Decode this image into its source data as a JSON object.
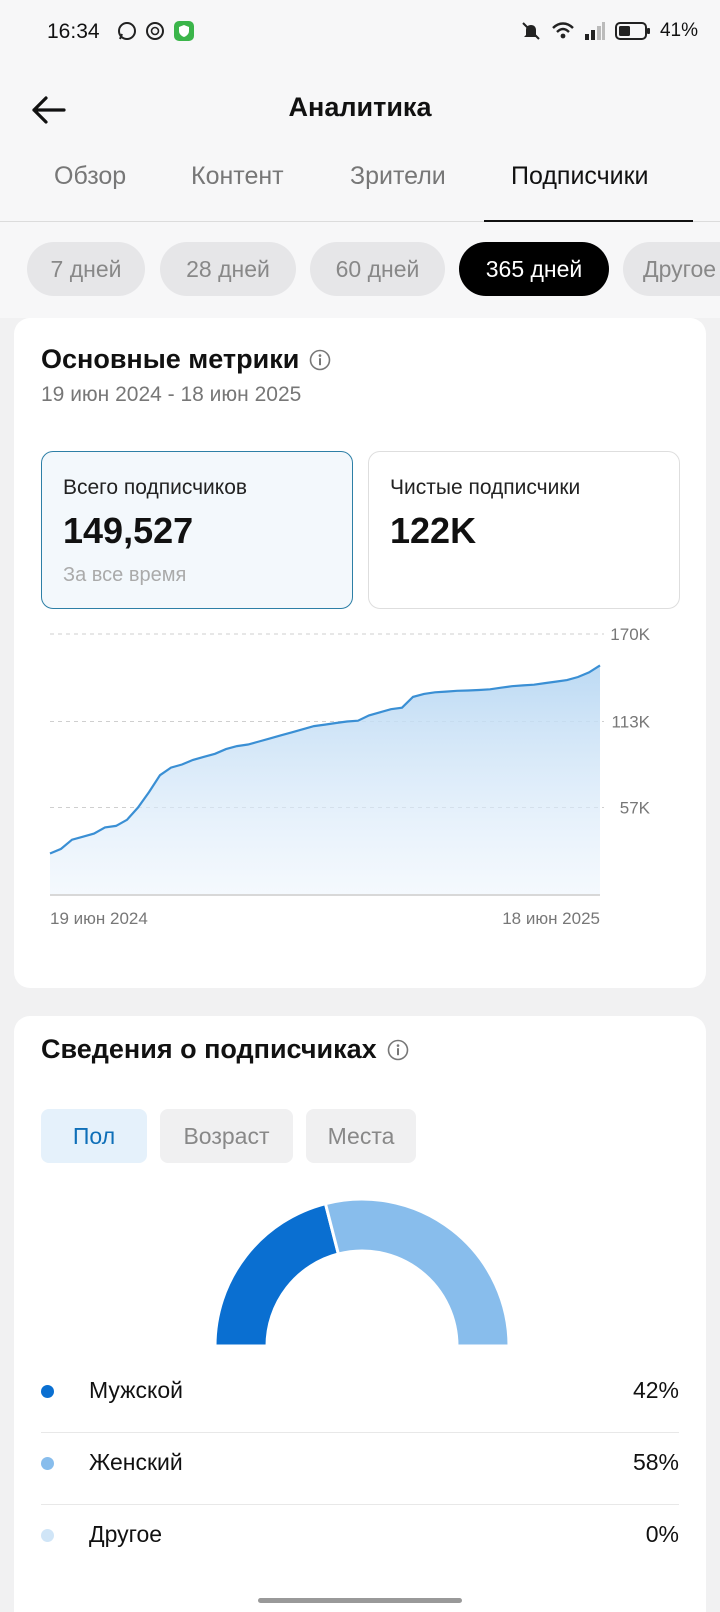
{
  "statusbar": {
    "time": "16:34",
    "battery": "41%",
    "icons_left": [
      "whatsapp-icon",
      "chatgpt-icon",
      "shield-app-icon"
    ],
    "icons_right": [
      "mute-icon",
      "wifi-icon",
      "signal-icon",
      "battery-icon"
    ]
  },
  "header": {
    "title": "Аналитика"
  },
  "tabs": [
    {
      "label": "Обзор"
    },
    {
      "label": "Контент"
    },
    {
      "label": "Зрители"
    },
    {
      "label": "Подписчики",
      "active": true
    }
  ],
  "periods": [
    {
      "label": "7 дней"
    },
    {
      "label": "28 дней"
    },
    {
      "label": "60 дней"
    },
    {
      "label": "365 дней",
      "active": true
    },
    {
      "label": "Другое"
    }
  ],
  "metrics_card": {
    "title": "Основные метрики",
    "date_range": "19 июн 2024 - 18 июн 2025",
    "metrics": [
      {
        "label": "Всего подписчиков",
        "value": "149,527",
        "sub": "За все время",
        "selected": true
      },
      {
        "label": "Чистые подписчики",
        "value": "122K"
      }
    ]
  },
  "chart_data": {
    "type": "area",
    "x_start_label": "19 июн 2024",
    "x_end_label": "18 июн 2025",
    "y_ticks": [
      "170K",
      "113K",
      "57K"
    ],
    "ylim": [
      0,
      170000
    ],
    "grid": true,
    "color": "#3a8fd4",
    "series": [
      {
        "values": [
          27000,
          30000,
          36000,
          38000,
          40000,
          44000,
          45000,
          49000,
          57000,
          67000,
          78000,
          83000,
          85000,
          88000,
          90000,
          92000,
          95000,
          97000,
          98000,
          100000,
          102000,
          104000,
          106000,
          108000,
          110000,
          111000,
          112000,
          113000,
          113500,
          117000,
          119000,
          121000,
          122000,
          129000,
          131000,
          132000,
          132500,
          133000,
          133200,
          133500,
          134000,
          135000,
          136000,
          136500,
          137000,
          138000,
          139000,
          140000,
          142000,
          145000,
          149527
        ]
      }
    ]
  },
  "subscribers_card": {
    "title": "Сведения о подписчиках",
    "segments": [
      {
        "label": "Пол",
        "active": true
      },
      {
        "label": "Возраст"
      },
      {
        "label": "Места"
      }
    ],
    "gender": [
      {
        "label": "Мужской",
        "pct": "42%",
        "value": 42,
        "color": "#0a6fd1"
      },
      {
        "label": "Женский",
        "pct": "58%",
        "value": 58,
        "color": "#88bdec"
      },
      {
        "label": "Другое",
        "pct": "0%",
        "value": 0,
        "color": "#d0e5f7"
      }
    ]
  }
}
